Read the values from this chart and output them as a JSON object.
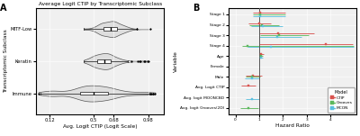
{
  "panel_a": {
    "title": "Average Logit CTIP by Transcriptomic Subclass",
    "xlabel": "Avg. Logit CTIP (Logit Scale)",
    "ylabel": "Transcriptomic Subclass",
    "groups": [
      "Immune",
      "Keratin",
      "MITF-Low"
    ],
    "xticks": [
      0.12,
      0.5,
      0.68,
      0.98
    ],
    "xtick_labels": [
      "0.12",
      "0.5",
      "0.68",
      "0.98"
    ],
    "xlim": [
      0.0,
      1.12
    ],
    "background": "#f0f0f0"
  },
  "panel_b": {
    "xlabel": "Hazard Ratio",
    "ylabel": "Variable",
    "variables": [
      "Stage 1",
      "Stage 2",
      "Stage 3",
      "Stage 4",
      "Age",
      "Female",
      "Male",
      "Avg. Logit CTIP",
      "Avg. logit MOONCBD",
      "Avg. logit Grooves(2D)"
    ],
    "vline_x": 1.0,
    "xticks": [
      0,
      1,
      2,
      3,
      4
    ],
    "models": [
      "CTIP",
      "Grooves",
      "MCON"
    ],
    "model_colors": [
      "#d9534f",
      "#5cb85c",
      "#5bc0de"
    ],
    "background": "#f0f0f0",
    "data": {
      "CTIP": {
        "Stage 1": [
          1.05,
          0.75,
          2.1
        ],
        "Stage 2": [
          1.0,
          0.55,
          1.5
        ],
        "Stage 3": [
          1.8,
          1.0,
          3.3
        ],
        "Stage 4": [
          3.8,
          1.0,
          4.95
        ],
        "Age": [
          1.08,
          1.0,
          1.18
        ],
        "Female": [
          1.0,
          1.0,
          1.0
        ],
        "Male": [
          0.75,
          0.45,
          1.1
        ],
        "Avg. Logit CTIP": [
          0.55,
          0.25,
          0.85
        ],
        "Avg. logit MOONCBD": [
          1.0,
          1.0,
          1.0
        ],
        "Avg. logit Grooves(2D)": [
          1.0,
          1.0,
          1.0
        ]
      },
      "Grooves": {
        "Stage 1": [
          1.05,
          0.75,
          2.1
        ],
        "Stage 2": [
          1.1,
          0.6,
          1.85
        ],
        "Stage 3": [
          1.85,
          1.05,
          3.1
        ],
        "Stage 4": [
          0.5,
          0.3,
          5.0
        ],
        "Age": [
          1.08,
          1.0,
          1.17
        ],
        "Female": [
          1.0,
          1.0,
          1.0
        ],
        "Male": [
          0.72,
          0.42,
          1.05
        ],
        "Avg. Logit CTIP": [
          1.0,
          1.0,
          1.0
        ],
        "Avg. logit MOONCBD": [
          1.0,
          1.0,
          1.0
        ],
        "Avg. logit Grooves(2D)": [
          0.55,
          0.2,
          0.95
        ]
      },
      "MCON": {
        "Stage 1": [
          1.05,
          0.75,
          2.1
        ],
        "Stage 2": [
          1.15,
          0.65,
          2.0
        ],
        "Stage 3": [
          1.75,
          1.0,
          2.8
        ],
        "Stage 4": [
          1.5,
          0.5,
          5.0
        ],
        "Age": [
          1.08,
          1.0,
          1.17
        ],
        "Female": [
          1.0,
          1.0,
          1.0
        ],
        "Male": [
          0.7,
          0.4,
          1.0
        ],
        "Avg. Logit CTIP": [
          1.0,
          1.0,
          1.0
        ],
        "Avg. logit MOONCBD": [
          0.72,
          0.45,
          1.0
        ],
        "Avg. logit Grooves(2D)": [
          1.0,
          1.0,
          1.0
        ]
      }
    }
  }
}
